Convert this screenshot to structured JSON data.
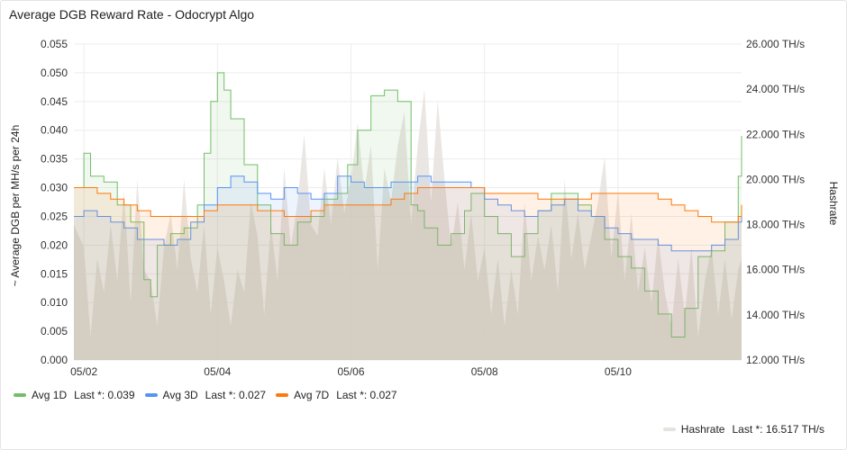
{
  "panel": {
    "title": "Average DGB Reward Rate - Odocrypt Algo"
  },
  "chart_data": {
    "type": "line",
    "title": "Average DGB Reward Rate - Odocrypt Algo",
    "ylabel": "~ Average DGB per MH/s per 24h",
    "y2label": "Hashrate",
    "x_ticks": [
      "05/02",
      "05/04",
      "05/06",
      "05/08",
      "05/10"
    ],
    "x_tick_days": [
      2,
      4,
      6,
      8,
      10
    ],
    "xlim_days": [
      1.85,
      11.85
    ],
    "y_ticks": [
      "0.055",
      "0.050",
      "0.045",
      "0.040",
      "0.035",
      "0.030",
      "0.025",
      "0.020",
      "0.015",
      "0.010",
      "0.005",
      "0.000"
    ],
    "ylim": [
      0,
      0.055
    ],
    "y2_ticks": [
      "26.000 TH/s",
      "24.000 TH/s",
      "22.000 TH/s",
      "20.000 TH/s",
      "18.000 TH/s",
      "16.000 TH/s",
      "14.000 TH/s",
      "12.000 TH/s"
    ],
    "y2lim": [
      12,
      26
    ],
    "grid": true,
    "legend_position": "bottom",
    "series": [
      {
        "name": "Avg 1D",
        "color": "#73bf69",
        "axis": "left",
        "fill": true,
        "last_label": "Last *: 0.039",
        "x": [
          1.85,
          2.0,
          2.1,
          2.3,
          2.5,
          2.7,
          2.9,
          3.0,
          3.1,
          3.3,
          3.5,
          3.7,
          3.8,
          3.9,
          4.0,
          4.1,
          4.2,
          4.4,
          4.6,
          4.8,
          5.0,
          5.2,
          5.4,
          5.6,
          5.8,
          5.95,
          6.1,
          6.3,
          6.5,
          6.7,
          6.9,
          7.0,
          7.1,
          7.3,
          7.5,
          7.7,
          7.8,
          7.9,
          8.0,
          8.2,
          8.4,
          8.6,
          8.8,
          9.0,
          9.2,
          9.4,
          9.6,
          9.8,
          10.0,
          10.2,
          10.4,
          10.6,
          10.8,
          11.0,
          11.2,
          11.4,
          11.6,
          11.8,
          11.85
        ],
        "y": [
          0.03,
          0.036,
          0.032,
          0.031,
          0.027,
          0.024,
          0.014,
          0.011,
          0.02,
          0.022,
          0.023,
          0.027,
          0.036,
          0.045,
          0.05,
          0.047,
          0.042,
          0.034,
          0.027,
          0.022,
          0.02,
          0.024,
          0.025,
          0.028,
          0.029,
          0.034,
          0.04,
          0.046,
          0.047,
          0.045,
          0.027,
          0.026,
          0.023,
          0.02,
          0.022,
          0.026,
          0.029,
          0.029,
          0.025,
          0.022,
          0.018,
          0.022,
          0.026,
          0.029,
          0.029,
          0.027,
          0.025,
          0.021,
          0.018,
          0.016,
          0.012,
          0.008,
          0.004,
          0.009,
          0.018,
          0.019,
          0.024,
          0.032,
          0.039
        ]
      },
      {
        "name": "Avg 3D",
        "color": "#5794f2",
        "axis": "left",
        "fill": true,
        "last_label": "Last *: 0.027",
        "x": [
          1.85,
          2.0,
          2.2,
          2.4,
          2.6,
          2.8,
          3.0,
          3.2,
          3.4,
          3.6,
          3.8,
          4.0,
          4.2,
          4.4,
          4.6,
          4.8,
          5.0,
          5.2,
          5.4,
          5.6,
          5.8,
          6.0,
          6.2,
          6.4,
          6.6,
          6.8,
          7.0,
          7.2,
          7.4,
          7.6,
          7.8,
          8.0,
          8.2,
          8.4,
          8.6,
          8.8,
          9.0,
          9.2,
          9.4,
          9.6,
          9.8,
          10.0,
          10.2,
          10.4,
          10.6,
          10.8,
          11.0,
          11.2,
          11.4,
          11.6,
          11.8,
          11.85
        ],
        "y": [
          0.025,
          0.026,
          0.025,
          0.024,
          0.023,
          0.021,
          0.021,
          0.02,
          0.021,
          0.024,
          0.027,
          0.03,
          0.032,
          0.031,
          0.029,
          0.028,
          0.03,
          0.029,
          0.028,
          0.029,
          0.032,
          0.031,
          0.03,
          0.03,
          0.031,
          0.031,
          0.032,
          0.031,
          0.031,
          0.031,
          0.03,
          0.028,
          0.027,
          0.026,
          0.025,
          0.026,
          0.027,
          0.028,
          0.026,
          0.025,
          0.023,
          0.022,
          0.021,
          0.021,
          0.02,
          0.019,
          0.019,
          0.019,
          0.02,
          0.021,
          0.024,
          0.027
        ]
      },
      {
        "name": "Avg 7D",
        "color": "#ff780a",
        "axis": "left",
        "fill": true,
        "last_label": "Last *: 0.027",
        "x": [
          1.85,
          2.0,
          2.2,
          2.4,
          2.6,
          2.8,
          3.0,
          3.2,
          3.4,
          3.6,
          3.8,
          4.0,
          4.2,
          4.4,
          4.6,
          4.8,
          5.0,
          5.2,
          5.4,
          5.6,
          5.8,
          6.0,
          6.2,
          6.4,
          6.6,
          6.8,
          7.0,
          7.2,
          7.4,
          7.6,
          7.8,
          8.0,
          8.2,
          8.4,
          8.6,
          8.8,
          9.0,
          9.2,
          9.4,
          9.6,
          9.8,
          10.0,
          10.2,
          10.4,
          10.6,
          10.8,
          11.0,
          11.2,
          11.4,
          11.6,
          11.8,
          11.85
        ],
        "y": [
          0.03,
          0.03,
          0.029,
          0.028,
          0.027,
          0.026,
          0.025,
          0.025,
          0.025,
          0.025,
          0.026,
          0.027,
          0.027,
          0.027,
          0.026,
          0.026,
          0.025,
          0.025,
          0.026,
          0.027,
          0.027,
          0.027,
          0.027,
          0.027,
          0.028,
          0.029,
          0.03,
          0.03,
          0.03,
          0.03,
          0.03,
          0.029,
          0.029,
          0.029,
          0.029,
          0.028,
          0.028,
          0.028,
          0.028,
          0.029,
          0.029,
          0.029,
          0.029,
          0.029,
          0.028,
          0.027,
          0.026,
          0.025,
          0.024,
          0.024,
          0.025,
          0.027
        ]
      },
      {
        "name": "Hashrate",
        "color": "#e6e2de",
        "axis": "right",
        "fill": true,
        "last_label": "Last *: 16.517 TH/s",
        "x": [
          1.85,
          2.0,
          2.1,
          2.2,
          2.3,
          2.4,
          2.5,
          2.6,
          2.7,
          2.8,
          2.9,
          3.0,
          3.1,
          3.2,
          3.3,
          3.4,
          3.5,
          3.6,
          3.7,
          3.8,
          3.9,
          4.0,
          4.1,
          4.2,
          4.3,
          4.4,
          4.5,
          4.6,
          4.7,
          4.8,
          4.9,
          5.0,
          5.1,
          5.2,
          5.3,
          5.4,
          5.5,
          5.6,
          5.7,
          5.8,
          5.9,
          6.0,
          6.1,
          6.2,
          6.3,
          6.4,
          6.5,
          6.6,
          6.7,
          6.8,
          6.9,
          7.0,
          7.1,
          7.2,
          7.3,
          7.4,
          7.5,
          7.6,
          7.7,
          7.8,
          7.9,
          8.0,
          8.1,
          8.2,
          8.3,
          8.4,
          8.5,
          8.6,
          8.7,
          8.8,
          8.9,
          9.0,
          9.1,
          9.2,
          9.3,
          9.4,
          9.5,
          9.6,
          9.7,
          9.8,
          9.9,
          10.0,
          10.1,
          10.2,
          10.3,
          10.4,
          10.5,
          10.6,
          10.7,
          10.8,
          10.9,
          11.0,
          11.1,
          11.2,
          11.3,
          11.4,
          11.5,
          11.6,
          11.7,
          11.8,
          11.85
        ],
        "y": [
          18.0,
          17.0,
          13.0,
          16.5,
          15.0,
          18.0,
          15.5,
          19.5,
          14.5,
          20.0,
          16.0,
          15.5,
          13.5,
          17.0,
          18.5,
          16.0,
          20.0,
          16.5,
          15.0,
          18.0,
          14.0,
          17.0,
          15.5,
          13.5,
          16.0,
          15.0,
          19.0,
          17.5,
          14.0,
          18.0,
          15.5,
          20.5,
          17.0,
          19.0,
          22.0,
          18.0,
          17.5,
          20.5,
          18.0,
          21.0,
          18.5,
          20.0,
          22.5,
          19.5,
          21.5,
          16.0,
          20.5,
          19.0,
          21.5,
          23.0,
          18.0,
          21.5,
          24.0,
          19.0,
          23.5,
          20.0,
          17.0,
          19.0,
          16.0,
          18.5,
          15.5,
          17.0,
          14.0,
          16.5,
          13.5,
          16.0,
          14.0,
          19.0,
          15.5,
          17.5,
          16.0,
          18.0,
          15.0,
          20.0,
          16.5,
          18.5,
          16.0,
          17.5,
          19.0,
          21.0,
          16.5,
          19.5,
          15.5,
          18.5,
          15.0,
          17.0,
          14.5,
          17.5,
          15.0,
          13.5,
          16.5,
          14.0,
          17.0,
          13.0,
          15.5,
          17.0,
          14.0,
          16.5,
          13.8,
          16.0,
          16.5
        ]
      }
    ]
  }
}
